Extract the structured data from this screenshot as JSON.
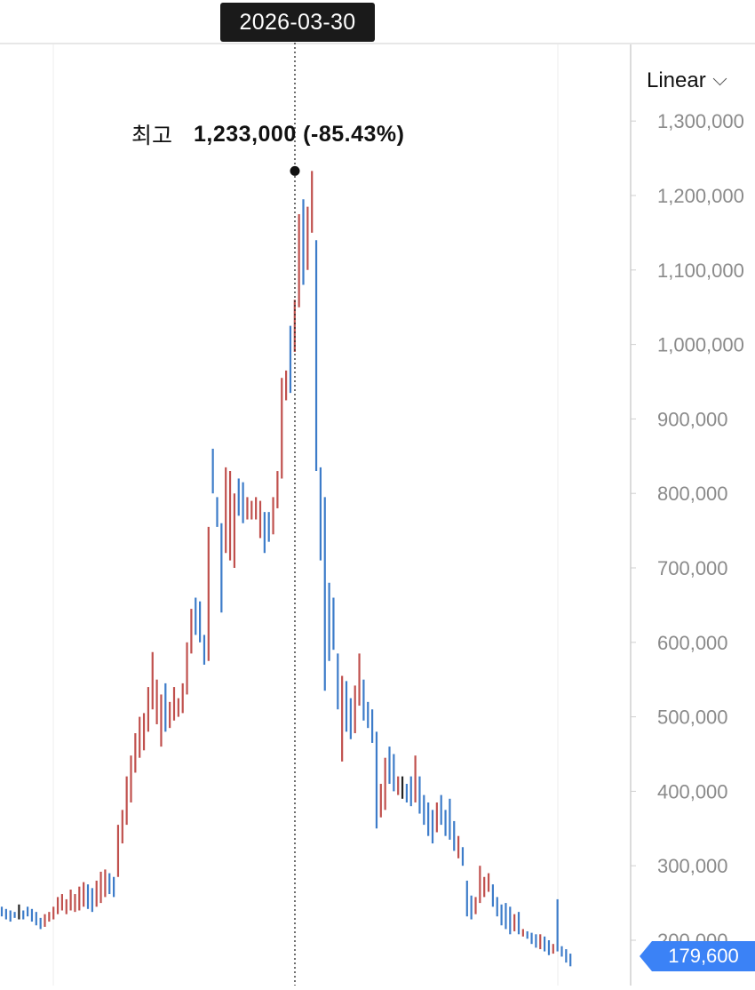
{
  "crosshair": {
    "date_label": "2026-03-30"
  },
  "scale": {
    "selected": "Linear"
  },
  "peak": {
    "prefix": "최고",
    "value_text": "1,233,000 (-85.43%)"
  },
  "current_price": {
    "label": "179,600",
    "value": 179600
  },
  "colors": {
    "up": "#c0504d",
    "down": "#3d7cc9",
    "grid": "#e9e9e9",
    "axis": "#cfcfcf",
    "price_tag": "#3b82f6",
    "tick_text": "#8a8a8a"
  },
  "chart_data": {
    "type": "ohlc",
    "title": "",
    "xlabel": "",
    "ylabel": "",
    "ylim": [
      180000,
      1300000
    ],
    "y_ticks": [
      200000,
      300000,
      400000,
      500000,
      600000,
      700000,
      800000,
      900000,
      1000000,
      1100000,
      1200000,
      1300000
    ],
    "y_tick_labels": [
      "200,000",
      "300,000",
      "400,000",
      "500,000",
      "600,000",
      "700,000",
      "800,000",
      "900,000",
      "1,000,000",
      "1,100,000",
      "1,200,000",
      "1,300,000"
    ],
    "peak_value": 1233000,
    "bars": [
      {
        "h": 245000,
        "l": 232000,
        "d": "down"
      },
      {
        "h": 242000,
        "l": 228000,
        "d": "down"
      },
      {
        "h": 240000,
        "l": 225000,
        "d": "down"
      },
      {
        "h": 238000,
        "l": 230000,
        "d": "down"
      },
      {
        "h": 248000,
        "l": 228000,
        "d": "neutral"
      },
      {
        "h": 240000,
        "l": 228000,
        "d": "down"
      },
      {
        "h": 245000,
        "l": 232000,
        "d": "down"
      },
      {
        "h": 242000,
        "l": 225000,
        "d": "down"
      },
      {
        "h": 238000,
        "l": 220000,
        "d": "down"
      },
      {
        "h": 230000,
        "l": 215000,
        "d": "down"
      },
      {
        "h": 235000,
        "l": 218000,
        "d": "up"
      },
      {
        "h": 238000,
        "l": 225000,
        "d": "up"
      },
      {
        "h": 245000,
        "l": 228000,
        "d": "up"
      },
      {
        "h": 258000,
        "l": 235000,
        "d": "up"
      },
      {
        "h": 262000,
        "l": 240000,
        "d": "up"
      },
      {
        "h": 255000,
        "l": 235000,
        "d": "up"
      },
      {
        "h": 268000,
        "l": 240000,
        "d": "up"
      },
      {
        "h": 262000,
        "l": 238000,
        "d": "up"
      },
      {
        "h": 272000,
        "l": 240000,
        "d": "up"
      },
      {
        "h": 278000,
        "l": 245000,
        "d": "up"
      },
      {
        "h": 275000,
        "l": 242000,
        "d": "down"
      },
      {
        "h": 270000,
        "l": 238000,
        "d": "down"
      },
      {
        "h": 280000,
        "l": 245000,
        "d": "up"
      },
      {
        "h": 292000,
        "l": 250000,
        "d": "up"
      },
      {
        "h": 295000,
        "l": 258000,
        "d": "up"
      },
      {
        "h": 290000,
        "l": 262000,
        "d": "down"
      },
      {
        "h": 285000,
        "l": 258000,
        "d": "down"
      },
      {
        "h": 355000,
        "l": 285000,
        "d": "up"
      },
      {
        "h": 375000,
        "l": 330000,
        "d": "up"
      },
      {
        "h": 420000,
        "l": 355000,
        "d": "up"
      },
      {
        "h": 448000,
        "l": 385000,
        "d": "up"
      },
      {
        "h": 478000,
        "l": 425000,
        "d": "up"
      },
      {
        "h": 500000,
        "l": 445000,
        "d": "up"
      },
      {
        "h": 505000,
        "l": 455000,
        "d": "up"
      },
      {
        "h": 540000,
        "l": 480000,
        "d": "up"
      },
      {
        "h": 587000,
        "l": 510000,
        "d": "up"
      },
      {
        "h": 550000,
        "l": 490000,
        "d": "up"
      },
      {
        "h": 530000,
        "l": 460000,
        "d": "up"
      },
      {
        "h": 545000,
        "l": 480000,
        "d": "down"
      },
      {
        "h": 520000,
        "l": 485000,
        "d": "up"
      },
      {
        "h": 540000,
        "l": 495000,
        "d": "up"
      },
      {
        "h": 525000,
        "l": 500000,
        "d": "up"
      },
      {
        "h": 545000,
        "l": 505000,
        "d": "up"
      },
      {
        "h": 600000,
        "l": 530000,
        "d": "up"
      },
      {
        "h": 645000,
        "l": 585000,
        "d": "up"
      },
      {
        "h": 660000,
        "l": 610000,
        "d": "down"
      },
      {
        "h": 655000,
        "l": 600000,
        "d": "down"
      },
      {
        "h": 610000,
        "l": 570000,
        "d": "down"
      },
      {
        "h": 755000,
        "l": 575000,
        "d": "up"
      },
      {
        "h": 860000,
        "l": 800000,
        "d": "down"
      },
      {
        "h": 795000,
        "l": 755000,
        "d": "down"
      },
      {
        "h": 760000,
        "l": 640000,
        "d": "down"
      },
      {
        "h": 835000,
        "l": 720000,
        "d": "up"
      },
      {
        "h": 830000,
        "l": 710000,
        "d": "up"
      },
      {
        "h": 800000,
        "l": 700000,
        "d": "up"
      },
      {
        "h": 820000,
        "l": 770000,
        "d": "down"
      },
      {
        "h": 815000,
        "l": 760000,
        "d": "down"
      },
      {
        "h": 795000,
        "l": 765000,
        "d": "up"
      },
      {
        "h": 790000,
        "l": 765000,
        "d": "up"
      },
      {
        "h": 795000,
        "l": 765000,
        "d": "up"
      },
      {
        "h": 790000,
        "l": 740000,
        "d": "up"
      },
      {
        "h": 775000,
        "l": 720000,
        "d": "down"
      },
      {
        "h": 775000,
        "l": 735000,
        "d": "down"
      },
      {
        "h": 795000,
        "l": 745000,
        "d": "up"
      },
      {
        "h": 830000,
        "l": 780000,
        "d": "up"
      },
      {
        "h": 955000,
        "l": 820000,
        "d": "up"
      },
      {
        "h": 965000,
        "l": 925000,
        "d": "up"
      },
      {
        "h": 1025000,
        "l": 935000,
        "d": "down"
      },
      {
        "h": 1060000,
        "l": 990000,
        "d": "up"
      },
      {
        "h": 1175000,
        "l": 1050000,
        "d": "up"
      },
      {
        "h": 1195000,
        "l": 1080000,
        "d": "down"
      },
      {
        "h": 1185000,
        "l": 1100000,
        "d": "up"
      },
      {
        "h": 1233000,
        "l": 1150000,
        "d": "up"
      },
      {
        "h": 1140000,
        "l": 830000,
        "d": "down"
      },
      {
        "h": 835000,
        "l": 710000,
        "d": "down"
      },
      {
        "h": 795000,
        "l": 535000,
        "d": "down"
      },
      {
        "h": 680000,
        "l": 575000,
        "d": "down"
      },
      {
        "h": 660000,
        "l": 590000,
        "d": "down"
      },
      {
        "h": 585000,
        "l": 510000,
        "d": "down"
      },
      {
        "h": 555000,
        "l": 440000,
        "d": "up"
      },
      {
        "h": 548000,
        "l": 480000,
        "d": "down"
      },
      {
        "h": 525000,
        "l": 470000,
        "d": "down"
      },
      {
        "h": 542000,
        "l": 478000,
        "d": "up"
      },
      {
        "h": 585000,
        "l": 515000,
        "d": "up"
      },
      {
        "h": 550000,
        "l": 495000,
        "d": "down"
      },
      {
        "h": 520000,
        "l": 485000,
        "d": "down"
      },
      {
        "h": 510000,
        "l": 465000,
        "d": "down"
      },
      {
        "h": 480000,
        "l": 350000,
        "d": "down"
      },
      {
        "h": 410000,
        "l": 365000,
        "d": "up"
      },
      {
        "h": 445000,
        "l": 375000,
        "d": "up"
      },
      {
        "h": 460000,
        "l": 410000,
        "d": "down"
      },
      {
        "h": 450000,
        "l": 400000,
        "d": "down"
      },
      {
        "h": 420000,
        "l": 395000,
        "d": "up"
      },
      {
        "h": 420000,
        "l": 390000,
        "d": "neutral"
      },
      {
        "h": 410000,
        "l": 385000,
        "d": "down"
      },
      {
        "h": 420000,
        "l": 380000,
        "d": "down"
      },
      {
        "h": 448000,
        "l": 385000,
        "d": "up"
      },
      {
        "h": 420000,
        "l": 370000,
        "d": "down"
      },
      {
        "h": 395000,
        "l": 355000,
        "d": "down"
      },
      {
        "h": 385000,
        "l": 340000,
        "d": "down"
      },
      {
        "h": 375000,
        "l": 330000,
        "d": "down"
      },
      {
        "h": 385000,
        "l": 345000,
        "d": "up"
      },
      {
        "h": 395000,
        "l": 355000,
        "d": "down"
      },
      {
        "h": 375000,
        "l": 340000,
        "d": "down"
      },
      {
        "h": 390000,
        "l": 335000,
        "d": "down"
      },
      {
        "h": 360000,
        "l": 320000,
        "d": "down"
      },
      {
        "h": 340000,
        "l": 310000,
        "d": "up"
      },
      {
        "h": 325000,
        "l": 300000,
        "d": "down"
      },
      {
        "h": 280000,
        "l": 232000,
        "d": "down"
      },
      {
        "h": 260000,
        "l": 228000,
        "d": "down"
      },
      {
        "h": 258000,
        "l": 235000,
        "d": "up"
      },
      {
        "h": 300000,
        "l": 250000,
        "d": "up"
      },
      {
        "h": 285000,
        "l": 258000,
        "d": "up"
      },
      {
        "h": 290000,
        "l": 265000,
        "d": "up"
      },
      {
        "h": 275000,
        "l": 245000,
        "d": "down"
      },
      {
        "h": 258000,
        "l": 232000,
        "d": "down"
      },
      {
        "h": 248000,
        "l": 220000,
        "d": "down"
      },
      {
        "h": 250000,
        "l": 215000,
        "d": "down"
      },
      {
        "h": 245000,
        "l": 208000,
        "d": "down"
      },
      {
        "h": 235000,
        "l": 212000,
        "d": "up"
      },
      {
        "h": 238000,
        "l": 208000,
        "d": "down"
      },
      {
        "h": 215000,
        "l": 205000,
        "d": "up"
      },
      {
        "h": 212000,
        "l": 202000,
        "d": "down"
      },
      {
        "h": 210000,
        "l": 195000,
        "d": "down"
      },
      {
        "h": 208000,
        "l": 190000,
        "d": "down"
      },
      {
        "h": 208000,
        "l": 188000,
        "d": "up"
      },
      {
        "h": 205000,
        "l": 185000,
        "d": "down"
      },
      {
        "h": 200000,
        "l": 180000,
        "d": "down"
      },
      {
        "h": 195000,
        "l": 182000,
        "d": "up"
      },
      {
        "h": 255000,
        "l": 185000,
        "d": "down"
      },
      {
        "h": 192000,
        "l": 178000,
        "d": "down"
      },
      {
        "h": 188000,
        "l": 170000,
        "d": "down"
      },
      {
        "h": 182000,
        "l": 165000,
        "d": "down"
      }
    ]
  }
}
